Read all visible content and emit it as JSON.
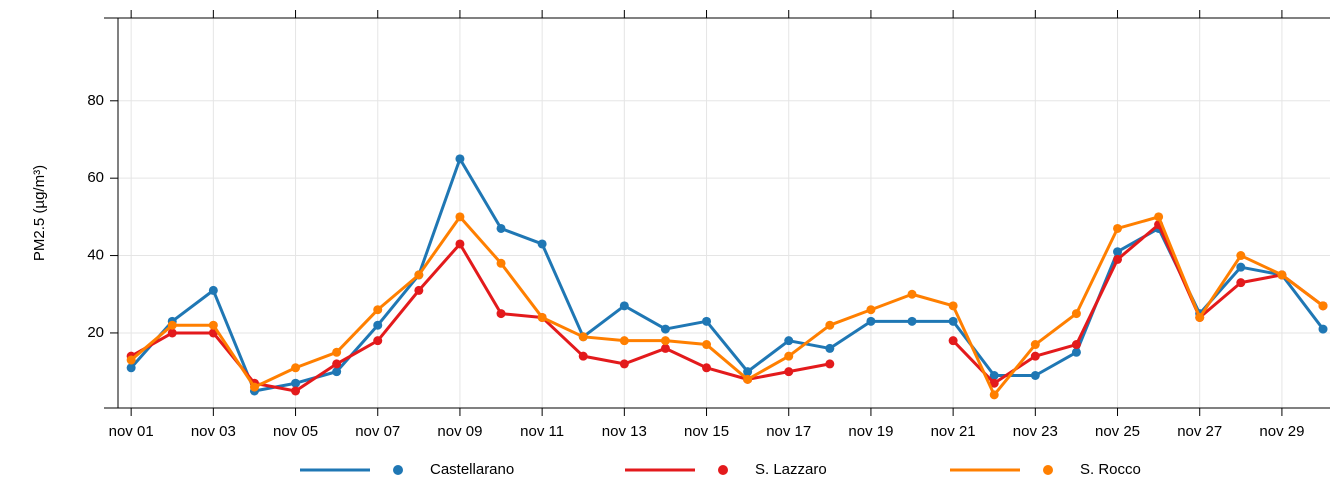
{
  "chart_data": {
    "type": "line",
    "y_label": "PM2.5 (µg/m³)",
    "x": [
      1,
      2,
      3,
      4,
      5,
      6,
      7,
      8,
      9,
      10,
      11,
      12,
      13,
      14,
      15,
      16,
      17,
      18,
      19,
      20,
      21,
      22,
      23,
      24,
      25,
      26,
      27,
      28,
      29,
      30
    ],
    "xlim": [
      0.68,
      30.17
    ],
    "xticks": [
      {
        "value": 1,
        "label": "nov 01"
      },
      {
        "value": 3,
        "label": "nov 03"
      },
      {
        "value": 5,
        "label": "nov 05"
      },
      {
        "value": 7,
        "label": "nov 07"
      },
      {
        "value": 9,
        "label": "nov 09"
      },
      {
        "value": 11,
        "label": "nov 11"
      },
      {
        "value": 13,
        "label": "nov 13"
      },
      {
        "value": 15,
        "label": "nov 15"
      },
      {
        "value": 17,
        "label": "nov 17"
      },
      {
        "value": 19,
        "label": "nov 19"
      },
      {
        "value": 21,
        "label": "nov 21"
      },
      {
        "value": 23,
        "label": "nov 23"
      },
      {
        "value": 25,
        "label": "nov 25"
      },
      {
        "value": 27,
        "label": "nov 27"
      },
      {
        "value": 29,
        "label": "nov 29"
      }
    ],
    "ylim": [
      0.6,
      101.4
    ],
    "yticks": [
      20,
      40,
      60,
      80
    ],
    "grid": true,
    "legend": "bottom",
    "series": [
      {
        "name": "Castellarano",
        "color": "#1f77b4",
        "values": [
          11,
          23,
          31,
          5,
          7,
          10,
          22,
          35,
          65,
          47,
          43,
          19,
          27,
          21,
          23,
          10,
          18,
          16,
          23,
          23,
          23,
          9,
          9,
          15,
          41,
          47,
          25,
          37,
          35,
          21
        ]
      },
      {
        "name": "S. Lazzaro",
        "color": "#e31a1c",
        "values": [
          14,
          20,
          20,
          7,
          5,
          12,
          18,
          31,
          43,
          25,
          24,
          14,
          12,
          16,
          11,
          8,
          10,
          12,
          null,
          null,
          18,
          7,
          14,
          17,
          39,
          48,
          24,
          33,
          35,
          27
        ]
      },
      {
        "name": "S. Rocco",
        "color": "#ff7f00",
        "values": [
          13,
          22,
          22,
          6,
          11,
          15,
          26,
          35,
          50,
          38,
          24,
          19,
          18,
          18,
          17,
          8,
          14,
          22,
          26,
          30,
          27,
          4,
          17,
          25,
          47,
          50,
          24,
          40,
          35,
          27
        ]
      }
    ]
  }
}
